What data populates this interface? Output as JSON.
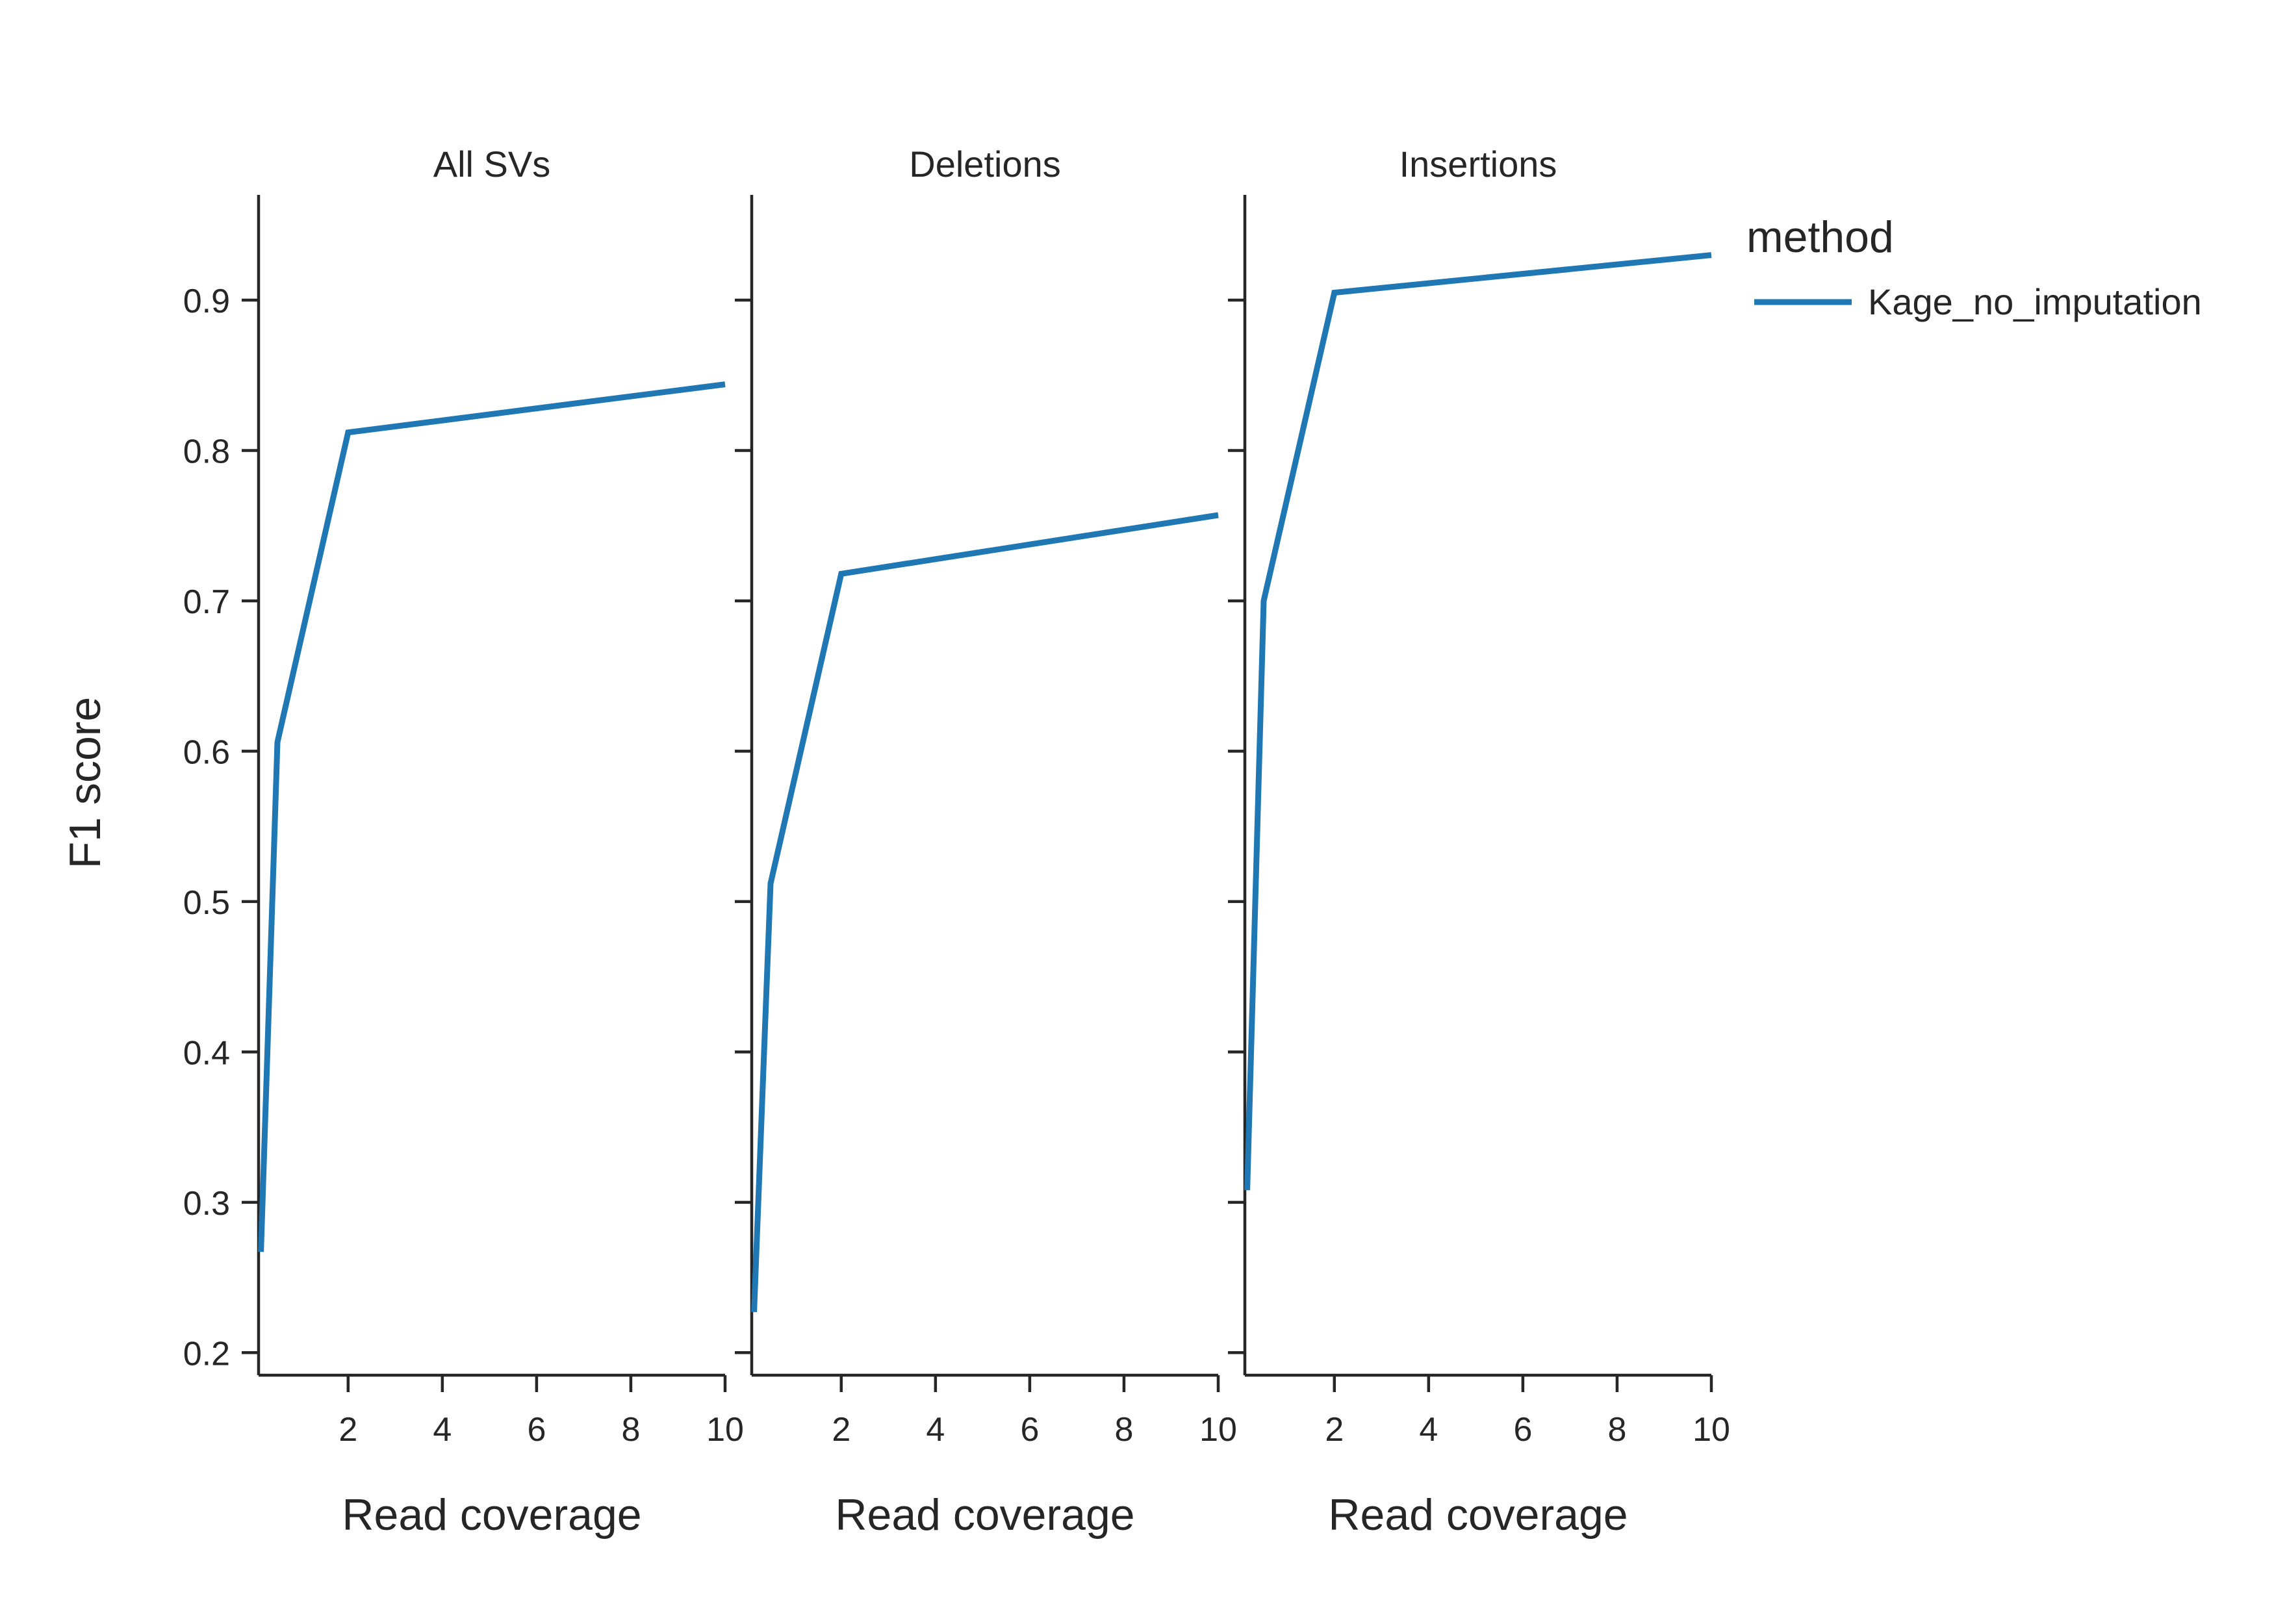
{
  "chart_data": {
    "type": "line",
    "ylabel": "F1 score",
    "ylim": [
      0.185,
      0.97
    ],
    "yticks": [
      0.2,
      0.3,
      0.4,
      0.5,
      0.6,
      0.7,
      0.8,
      0.9
    ],
    "ytick_labels": [
      "0.2",
      "0.3",
      "0.4",
      "0.5",
      "0.6",
      "0.7",
      "0.8",
      "0.9"
    ],
    "xlim": [
      0.1,
      10
    ],
    "xticks": [
      2,
      4,
      6,
      8,
      10
    ],
    "xtick_labels": [
      "2",
      "4",
      "6",
      "8",
      "10"
    ],
    "grid": false,
    "legend": {
      "title": "method",
      "placement": "right",
      "entries": [
        {
          "name": "Kage_no_imputation",
          "color": "#1f77b4"
        }
      ]
    },
    "panels": [
      {
        "title": "All SVs",
        "xlabel": "Read coverage",
        "series": [
          {
            "name": "Kage_no_imputation",
            "color": "#1f77b4",
            "x": [
              0.15,
              0.5,
              2,
              10
            ],
            "y": [
              0.267,
              0.606,
              0.812,
              0.844
            ]
          }
        ]
      },
      {
        "title": "Deletions",
        "xlabel": "Read coverage",
        "series": [
          {
            "name": "Kage_no_imputation",
            "color": "#1f77b4",
            "x": [
              0.15,
              0.5,
              2,
              10
            ],
            "y": [
              0.227,
              0.512,
              0.718,
              0.757
            ]
          }
        ]
      },
      {
        "title": "Insertions",
        "xlabel": "Read coverage",
        "series": [
          {
            "name": "Kage_no_imputation",
            "color": "#1f77b4",
            "x": [
              0.15,
              0.5,
              2,
              10
            ],
            "y": [
              0.308,
              0.7,
              0.905,
              0.93
            ]
          }
        ]
      }
    ]
  }
}
